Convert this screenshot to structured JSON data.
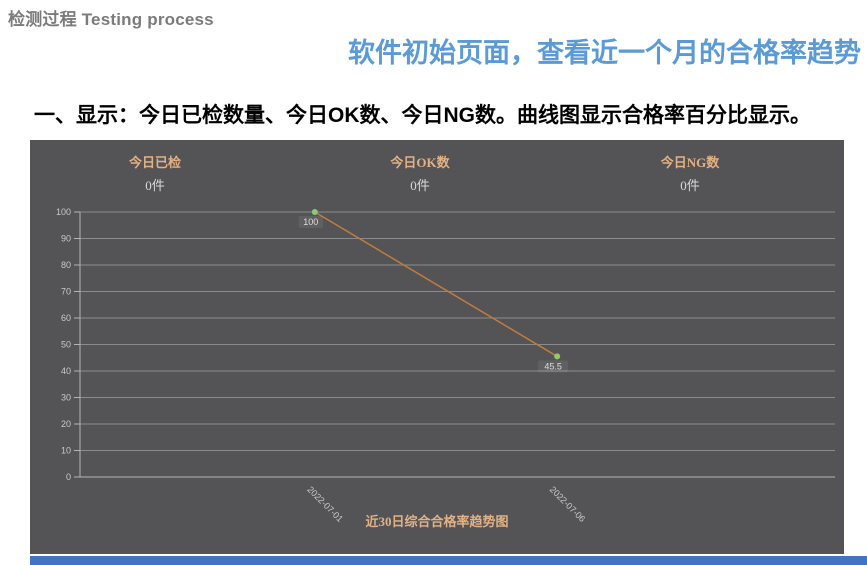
{
  "page": {
    "header": "检测过程 Testing process",
    "title": "软件初始页面，查看近一个月的合格率趋势",
    "description": "一、显示：今日已检数量、今日OK数、今日NG数。曲线图显示合格率百分比显示。"
  },
  "panel": {
    "stats": [
      {
        "label": "今日已检",
        "value": "0件"
      },
      {
        "label": "今日OK数",
        "value": "0件"
      },
      {
        "label": "今日NG数",
        "value": "0件"
      }
    ],
    "colors": {
      "background": "#545457",
      "stat_label": "#e3b183",
      "stat_value": "#d9d9d9",
      "accent_bar": "#4472c4"
    }
  },
  "chart_data": {
    "type": "line",
    "title": "近30日综合合格率趋势图",
    "x": [
      "2022-07-01",
      "2022-07-06"
    ],
    "values": [
      100,
      45.5
    ],
    "xlabel": "",
    "ylabel": "",
    "ylim": [
      0,
      100
    ],
    "y_ticks": [
      0,
      10,
      20,
      30,
      40,
      50,
      60,
      70,
      80,
      90,
      100
    ],
    "grid": true,
    "legend": "none",
    "line_color": "#c07c3e",
    "marker_color": "#90ca70",
    "axis_color": "#b5b5b5",
    "grid_color": "#8a8b8d",
    "tick_label_color": "#c9c9c9",
    "point_label_color": "#dddddd",
    "title_color": "#e3b183"
  }
}
